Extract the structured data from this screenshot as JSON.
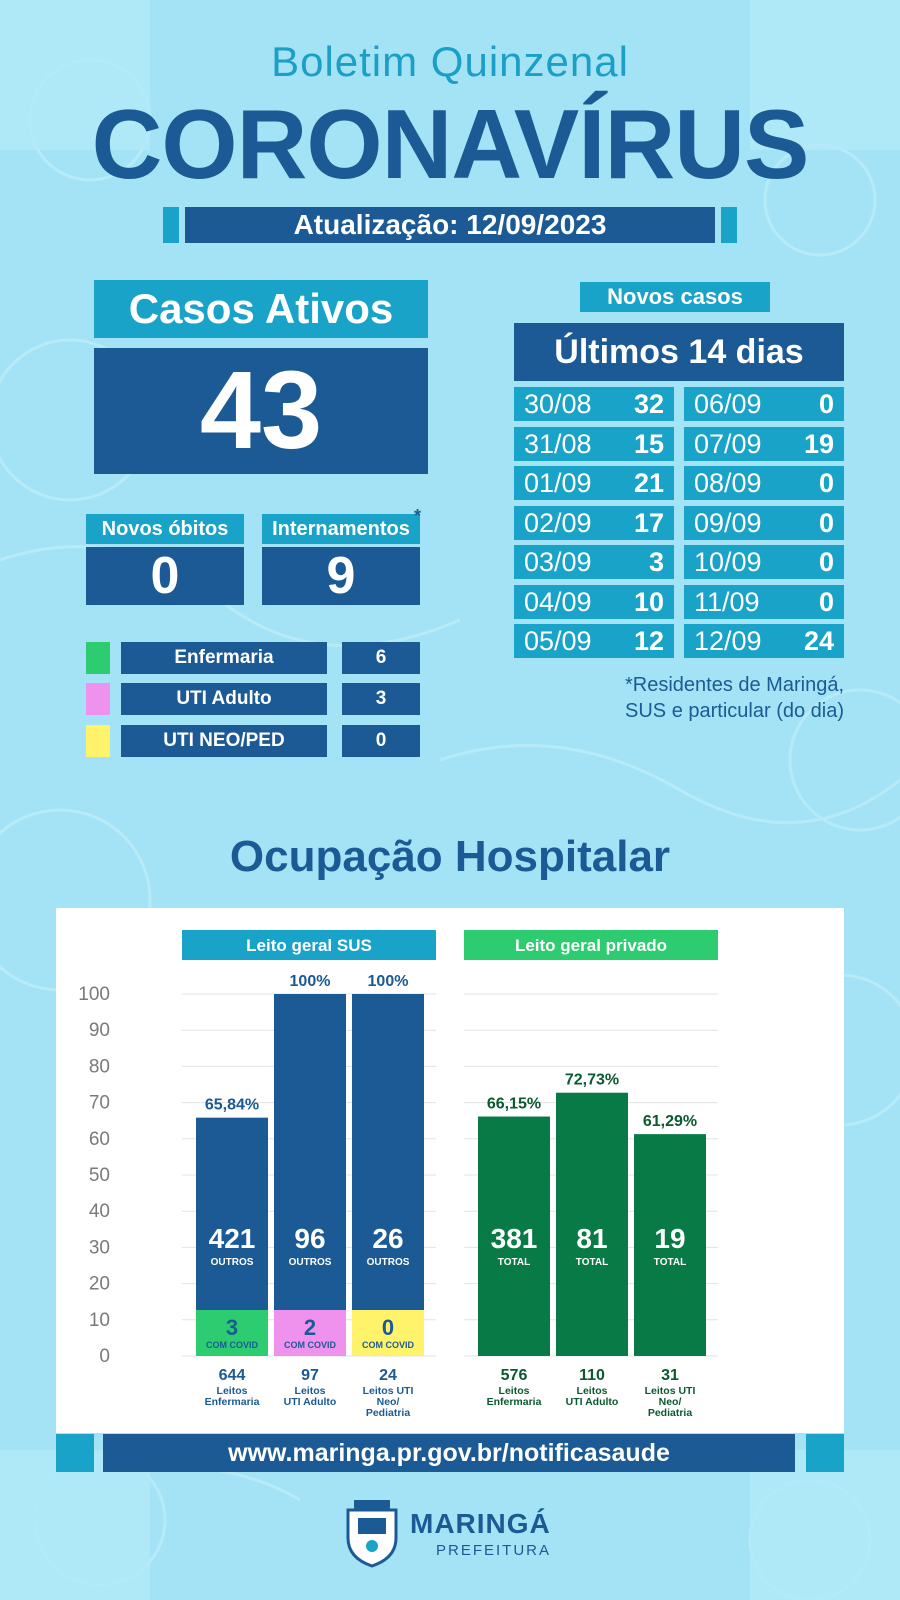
{
  "header": {
    "subtitle": "Boletim Quinzenal",
    "title": "CORONAVÍRUS",
    "update": "Atualização: 12/09/2023"
  },
  "active_cases": {
    "label": "Casos Ativos",
    "value": "43"
  },
  "deaths": {
    "label": "Novos óbitos",
    "value": "0"
  },
  "hospitalizations": {
    "label": "Internamentos",
    "asterisk": "*",
    "value": "9"
  },
  "breakdown": [
    {
      "label": "Enfermaria",
      "value": "6",
      "color": "#2ecc71"
    },
    {
      "label": "UTI Adulto",
      "value": "3",
      "color": "#ee92ee"
    },
    {
      "label": "UTI NEO/PED",
      "value": "0",
      "color": "#fff36b"
    }
  ],
  "new_cases": {
    "label": "Novos casos",
    "period": "Últimos 14 dias",
    "days": [
      {
        "date": "30/08",
        "value": "32"
      },
      {
        "date": "31/08",
        "value": "15"
      },
      {
        "date": "01/09",
        "value": "21"
      },
      {
        "date": "02/09",
        "value": "17"
      },
      {
        "date": "03/09",
        "value": "3"
      },
      {
        "date": "04/09",
        "value": "10"
      },
      {
        "date": "05/09",
        "value": "12"
      },
      {
        "date": "06/09",
        "value": "0"
      },
      {
        "date": "07/09",
        "value": "19"
      },
      {
        "date": "08/09",
        "value": "0"
      },
      {
        "date": "09/09",
        "value": "0"
      },
      {
        "date": "10/09",
        "value": "0"
      },
      {
        "date": "11/09",
        "value": "0"
      },
      {
        "date": "12/09",
        "value": "24"
      }
    ],
    "note_line1": "*Residentes de Maringá,",
    "note_line2": "SUS e particular (do dia)"
  },
  "occupancy_title": "Ocupação Hospitalar",
  "chart_data": {
    "type": "bar",
    "ylim": [
      0,
      100
    ],
    "yticks": [
      "0",
      "10",
      "20",
      "30",
      "40",
      "50",
      "60",
      "70",
      "80",
      "90",
      "100"
    ],
    "groups": [
      {
        "name": "Leito geral SUS",
        "header_color": "#1aa3c8",
        "bar_color": "#1b5a94",
        "bars": [
          {
            "percent_label": "65,84%",
            "value": 65.84,
            "main_value": "421",
            "main_sub": "OUTROS",
            "covid_value": "3",
            "covid_sub": "COM COVID",
            "covid_color": "#2ecc71",
            "total": "644",
            "category_lines": [
              "Leitos",
              "Enfermaria"
            ]
          },
          {
            "percent_label": "100%",
            "value": 100,
            "main_value": "96",
            "main_sub": "OUTROS",
            "covid_value": "2",
            "covid_sub": "COM COVID",
            "covid_color": "#ee92ee",
            "total": "97",
            "category_lines": [
              "Leitos",
              "UTI Adulto"
            ]
          },
          {
            "percent_label": "100%",
            "value": 100,
            "main_value": "26",
            "main_sub": "OUTROS",
            "covid_value": "0",
            "covid_sub": "COM COVID",
            "covid_color": "#fff36b",
            "total": "24",
            "category_lines": [
              "Leitos UTI",
              "Neo/",
              "Pediatria"
            ]
          }
        ]
      },
      {
        "name": "Leito geral privado",
        "header_color": "#2ecc71",
        "bar_color": "#077a46",
        "bars": [
          {
            "percent_label": "66,15%",
            "value": 66.15,
            "main_value": "381",
            "main_sub": "TOTAL",
            "total": "576",
            "category_lines": [
              "Leitos",
              "Enfermaria"
            ]
          },
          {
            "percent_label": "72,73%",
            "value": 72.73,
            "main_value": "81",
            "main_sub": "TOTAL",
            "total": "110",
            "category_lines": [
              "Leitos",
              "UTI Adulto"
            ]
          },
          {
            "percent_label": "61,29%",
            "value": 61.29,
            "main_value": "19",
            "main_sub": "TOTAL",
            "total": "31",
            "category_lines": [
              "Leitos UTI",
              "Neo/",
              "Pediatria"
            ]
          }
        ]
      }
    ]
  },
  "footer": {
    "url": "www.maringa.pr.gov.br/notificasaude",
    "logo_name": "MARINGÁ",
    "logo_sub": "PREFEITURA"
  }
}
